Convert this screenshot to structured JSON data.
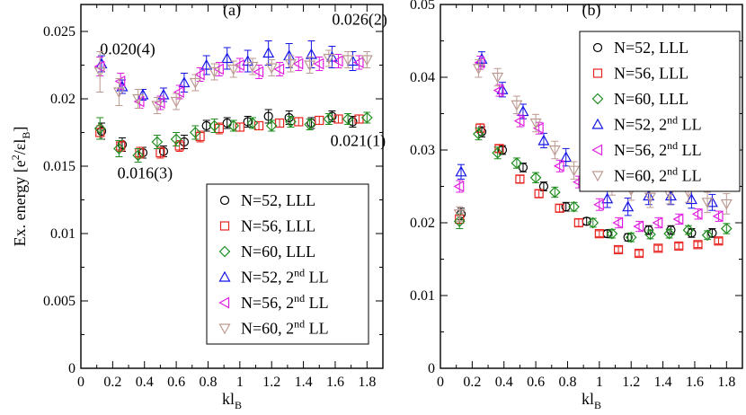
{
  "colors": {
    "N52_LLL": "#000000",
    "N56_LLL": "#e8231f",
    "N60_LLL": "#1e8c1e",
    "N52_2LL": "#1414e6",
    "N56_2LL": "#e01ee0",
    "N60_2LL": "#bc9a92"
  },
  "chart_data": [
    {
      "type": "scatter",
      "panel_label": "(a)",
      "xlabel": {
        "main": "kl",
        "sub": "B"
      },
      "ylabel": {
        "pre": "Ex. energy [e",
        "sup": "2",
        "mid": "/εl",
        "sub": "B",
        "post": "]"
      },
      "xlim": [
        0,
        1.9
      ],
      "ylim": [
        0,
        0.027
      ],
      "xticks": [
        0,
        0.2,
        0.4,
        0.6,
        0.8,
        1,
        1.2,
        1.4,
        1.6,
        1.8
      ],
      "xtick_labels": [
        "0",
        "0.2",
        "0.4",
        "0.6",
        "0.8",
        "1",
        "1.2",
        "1.4",
        "1.6",
        "1.8"
      ],
      "yticks": [
        0,
        0.005,
        0.01,
        0.015,
        0.02,
        0.025
      ],
      "ytick_labels": [
        "0",
        "0.005",
        "0.01",
        "0.015",
        "0.02",
        "0.025"
      ],
      "annotations": [
        {
          "text": "0.020(4)",
          "x": 0.12,
          "y": 0.0233
        },
        {
          "text": "0.026(2)",
          "x": 1.58,
          "y": 0.0255
        },
        {
          "text": "0.021(1)",
          "x": 1.57,
          "y": 0.0165
        },
        {
          "text": "0.016(3)",
          "x": 0.23,
          "y": 0.0141
        }
      ],
      "legend": {
        "position": "bottom-right",
        "entries": [
          {
            "key": "N52_LLL",
            "name": "N=52, LLL",
            "marker": "circle"
          },
          {
            "key": "N56_LLL",
            "name": "N=56, LLL",
            "marker": "square"
          },
          {
            "key": "N60_LLL",
            "name": "N=60, LLL",
            "marker": "diamond"
          },
          {
            "key": "N52_2LL",
            "name": "N=52, 2",
            "sup": "nd",
            "post": " LL",
            "marker": "triangle-up"
          },
          {
            "key": "N56_2LL",
            "name": "N=56, 2",
            "sup": "nd",
            "post": " LL",
            "marker": "triangle-left"
          },
          {
            "key": "N60_2LL",
            "name": "N=60, 2",
            "sup": "nd",
            "post": " LL",
            "marker": "triangle-down"
          }
        ]
      },
      "series": [
        {
          "key": "N52_LLL",
          "marker": "circle",
          "color": "#000000",
          "x": [
            0.13,
            0.26,
            0.39,
            0.52,
            0.65,
            0.79,
            0.92,
            1.05,
            1.18,
            1.31,
            1.45,
            1.58,
            1.71
          ],
          "y": [
            0.0176,
            0.0166,
            0.016,
            0.0161,
            0.0168,
            0.018,
            0.0182,
            0.0183,
            0.0187,
            0.0186,
            0.0182,
            0.0187,
            0.0183
          ],
          "err": [
            0.0006,
            0.0005,
            0.0004,
            0.0004,
            0.0005,
            0.0004,
            0.0004,
            0.0004,
            0.0005,
            0.0005,
            0.0004,
            0.0004,
            0.0004
          ]
        },
        {
          "key": "N56_LLL",
          "marker": "square",
          "color": "#e8231f",
          "x": [
            0.12,
            0.25,
            0.37,
            0.5,
            0.62,
            0.75,
            0.87,
            1.0,
            1.12,
            1.25,
            1.37,
            1.5,
            1.62,
            1.75
          ],
          "y": [
            0.0175,
            0.0165,
            0.016,
            0.016,
            0.0165,
            0.0172,
            0.0178,
            0.0179,
            0.018,
            0.0182,
            0.0183,
            0.0184,
            0.0185,
            0.0185
          ],
          "err": [
            0.0005,
            0.0004,
            0.0004,
            0.0004,
            0.0004,
            0.0004,
            0.0004,
            0.0003,
            0.0003,
            0.0003,
            0.0003,
            0.0003,
            0.0003,
            0.0003
          ]
        },
        {
          "key": "N60_LLL",
          "marker": "diamond",
          "color": "#1e8c1e",
          "x": [
            0.12,
            0.24,
            0.36,
            0.48,
            0.6,
            0.72,
            0.84,
            0.96,
            1.08,
            1.2,
            1.32,
            1.44,
            1.56,
            1.68,
            1.8
          ],
          "y": [
            0.0178,
            0.0163,
            0.0158,
            0.0168,
            0.017,
            0.0175,
            0.018,
            0.018,
            0.0182,
            0.018,
            0.0183,
            0.0181,
            0.0185,
            0.0185,
            0.0186
          ],
          "err": [
            0.0008,
            0.0006,
            0.0005,
            0.0005,
            0.0005,
            0.0005,
            0.0005,
            0.0004,
            0.0004,
            0.0004,
            0.0004,
            0.0004,
            0.0004,
            0.0004,
            0.0004
          ]
        },
        {
          "key": "N52_2LL",
          "marker": "triangle-up",
          "color": "#1414e6",
          "x": [
            0.13,
            0.26,
            0.39,
            0.52,
            0.65,
            0.79,
            0.92,
            1.05,
            1.18,
            1.31,
            1.45,
            1.58,
            1.71
          ],
          "y": [
            0.0226,
            0.0209,
            0.0203,
            0.0203,
            0.0212,
            0.0225,
            0.023,
            0.0228,
            0.0234,
            0.0232,
            0.0233,
            0.0231,
            0.0228
          ],
          "err": [
            0.0006,
            0.0005,
            0.0004,
            0.0005,
            0.0007,
            0.0007,
            0.0008,
            0.0008,
            0.0009,
            0.0009,
            0.001,
            0.0008,
            0.0007
          ]
        },
        {
          "key": "N56_2LL",
          "marker": "triangle-left",
          "color": "#e01ee0",
          "x": [
            0.12,
            0.25,
            0.37,
            0.5,
            0.62,
            0.75,
            0.87,
            1.0,
            1.12,
            1.25,
            1.37,
            1.5,
            1.62,
            1.75
          ],
          "y": [
            0.0224,
            0.0213,
            0.0198,
            0.0197,
            0.0205,
            0.0218,
            0.0222,
            0.0225,
            0.022,
            0.0222,
            0.0226,
            0.0226,
            0.0228,
            0.0227
          ],
          "err": [
            0.0007,
            0.0006,
            0.0005,
            0.0005,
            0.0005,
            0.0005,
            0.0005,
            0.0005,
            0.0005,
            0.0005,
            0.0005,
            0.0005,
            0.0005,
            0.0005
          ]
        },
        {
          "key": "N60_2LL",
          "marker": "triangle-down",
          "color": "#bc9a92",
          "x": [
            0.12,
            0.24,
            0.36,
            0.48,
            0.6,
            0.72,
            0.84,
            0.96,
            1.08,
            1.2,
            1.32,
            1.44,
            1.56,
            1.68,
            1.8
          ],
          "y": [
            0.022,
            0.0205,
            0.02,
            0.0195,
            0.0198,
            0.0212,
            0.022,
            0.0222,
            0.0224,
            0.0223,
            0.0226,
            0.0225,
            0.023,
            0.0229,
            0.0229
          ],
          "err": [
            0.0015,
            0.001,
            0.0007,
            0.0006,
            0.0006,
            0.0006,
            0.0006,
            0.0006,
            0.0006,
            0.0006,
            0.0006,
            0.0006,
            0.0006,
            0.0006,
            0.0006
          ]
        }
      ]
    },
    {
      "type": "scatter",
      "panel_label": "(b)",
      "xlabel": {
        "main": "kl",
        "sub": "B"
      },
      "xlim": [
        0,
        1.9
      ],
      "ylim": [
        0,
        0.05
      ],
      "xticks": [
        0,
        0.2,
        0.4,
        0.6,
        0.8,
        1,
        1.2,
        1.4,
        1.6,
        1.8
      ],
      "xtick_labels": [
        "0",
        "0.2",
        "0.4",
        "0.6",
        "0.8",
        "1",
        "1.2",
        "1.4",
        "1.6",
        "1.8"
      ],
      "yticks": [
        0,
        0.01,
        0.02,
        0.03,
        0.04,
        0.05
      ],
      "ytick_labels": [
        "0",
        "0.01",
        "0.02",
        "0.03",
        "0.04",
        "0.05"
      ],
      "legend": {
        "position": "top-right",
        "entries": [
          {
            "key": "N52_LLL",
            "name": "N=52, LLL",
            "marker": "circle"
          },
          {
            "key": "N56_LLL",
            "name": "N=56, LLL",
            "marker": "square"
          },
          {
            "key": "N60_LLL",
            "name": "N=60, LLL",
            "marker": "diamond"
          },
          {
            "key": "N52_2LL",
            "name": "N=52, 2",
            "sup": "nd",
            "post": " LL",
            "marker": "triangle-up"
          },
          {
            "key": "N56_2LL",
            "name": "N=56, 2",
            "sup": "nd",
            "post": " LL",
            "marker": "triangle-left"
          },
          {
            "key": "N60_2LL",
            "name": "N=60, 2",
            "sup": "nd",
            "post": " LL",
            "marker": "triangle-down"
          }
        ]
      },
      "series": [
        {
          "key": "N52_LLL",
          "marker": "circle",
          "color": "#000000",
          "x": [
            0.13,
            0.26,
            0.39,
            0.52,
            0.65,
            0.79,
            0.92,
            1.05,
            1.18,
            1.31,
            1.45,
            1.58,
            1.71
          ],
          "y": [
            0.0212,
            0.0325,
            0.03,
            0.0276,
            0.025,
            0.0222,
            0.0202,
            0.0185,
            0.018,
            0.019,
            0.019,
            0.0186,
            0.0186
          ],
          "err": [
            0.0008,
            0.0007,
            0.0006,
            0.0006,
            0.0006,
            0.0006,
            0.0005,
            0.0005,
            0.0005,
            0.0006,
            0.0006,
            0.0006,
            0.0006
          ]
        },
        {
          "key": "N56_LLL",
          "marker": "square",
          "color": "#e8231f",
          "x": [
            0.12,
            0.25,
            0.37,
            0.5,
            0.62,
            0.75,
            0.87,
            1.0,
            1.12,
            1.25,
            1.37,
            1.5,
            1.62,
            1.75
          ],
          "y": [
            0.0205,
            0.033,
            0.0302,
            0.026,
            0.024,
            0.022,
            0.02,
            0.0185,
            0.0163,
            0.0158,
            0.0165,
            0.0168,
            0.017,
            0.0175
          ],
          "err": [
            0.0006,
            0.0006,
            0.0005,
            0.0005,
            0.0005,
            0.0005,
            0.0005,
            0.0004,
            0.0004,
            0.0004,
            0.0004,
            0.0004,
            0.0004,
            0.0004
          ]
        },
        {
          "key": "N60_LLL",
          "marker": "diamond",
          "color": "#1e8c1e",
          "x": [
            0.12,
            0.24,
            0.36,
            0.48,
            0.6,
            0.72,
            0.84,
            0.96,
            1.08,
            1.2,
            1.32,
            1.44,
            1.56,
            1.68,
            1.8
          ],
          "y": [
            0.0202,
            0.0322,
            0.0296,
            0.0282,
            0.0262,
            0.0242,
            0.0222,
            0.02,
            0.0185,
            0.018,
            0.0184,
            0.0185,
            0.019,
            0.0183,
            0.0192
          ],
          "err": [
            0.001,
            0.0008,
            0.0008,
            0.0007,
            0.0007,
            0.0007,
            0.0006,
            0.0006,
            0.0006,
            0.0006,
            0.0006,
            0.0006,
            0.0006,
            0.0006,
            0.0007
          ]
        },
        {
          "key": "N52_2LL",
          "marker": "triangle-up",
          "color": "#1414e6",
          "x": [
            0.13,
            0.26,
            0.39,
            0.52,
            0.65,
            0.79,
            0.92,
            1.05,
            1.18,
            1.31,
            1.45,
            1.58,
            1.71
          ],
          "y": [
            0.027,
            0.0425,
            0.0383,
            0.0353,
            0.0313,
            0.029,
            0.026,
            0.0233,
            0.0222,
            0.0237,
            0.0237,
            0.0232,
            0.0228
          ],
          "err": [
            0.001,
            0.001,
            0.001,
            0.001,
            0.001,
            0.0012,
            0.0012,
            0.0012,
            0.0012,
            0.0012,
            0.0012,
            0.0012,
            0.0011
          ]
        },
        {
          "key": "N56_2LL",
          "marker": "triangle-left",
          "color": "#e01ee0",
          "x": [
            0.12,
            0.25,
            0.37,
            0.5,
            0.62,
            0.75,
            0.87,
            1.0,
            1.12,
            1.25,
            1.37,
            1.5,
            1.62,
            1.75
          ],
          "y": [
            0.025,
            0.042,
            0.0382,
            0.034,
            0.033,
            0.0278,
            0.0256,
            0.0225,
            0.02,
            0.0195,
            0.02,
            0.0205,
            0.0212,
            0.0209
          ],
          "err": [
            0.0008,
            0.0009,
            0.0008,
            0.0008,
            0.0008,
            0.0008,
            0.0008,
            0.0008,
            0.0007,
            0.0007,
            0.0007,
            0.0007,
            0.0007,
            0.0007
          ]
        },
        {
          "key": "N60_2LL",
          "marker": "triangle-down",
          "color": "#bc9a92",
          "x": [
            0.12,
            0.24,
            0.36,
            0.48,
            0.6,
            0.72,
            0.84,
            0.96,
            1.08,
            1.2,
            1.32,
            1.44,
            1.56,
            1.68,
            1.8
          ],
          "y": [
            0.0212,
            0.0412,
            0.04,
            0.0362,
            0.0337,
            0.03,
            0.0272,
            0.0262,
            0.0252,
            0.0245,
            0.0235,
            0.024,
            0.0242,
            0.0228,
            0.0226
          ],
          "err": [
            0.001,
            0.0012,
            0.0012,
            0.0012,
            0.0012,
            0.0012,
            0.0012,
            0.0012,
            0.0014,
            0.0014,
            0.0014,
            0.0014,
            0.0014,
            0.0014,
            0.0014
          ]
        }
      ]
    }
  ]
}
